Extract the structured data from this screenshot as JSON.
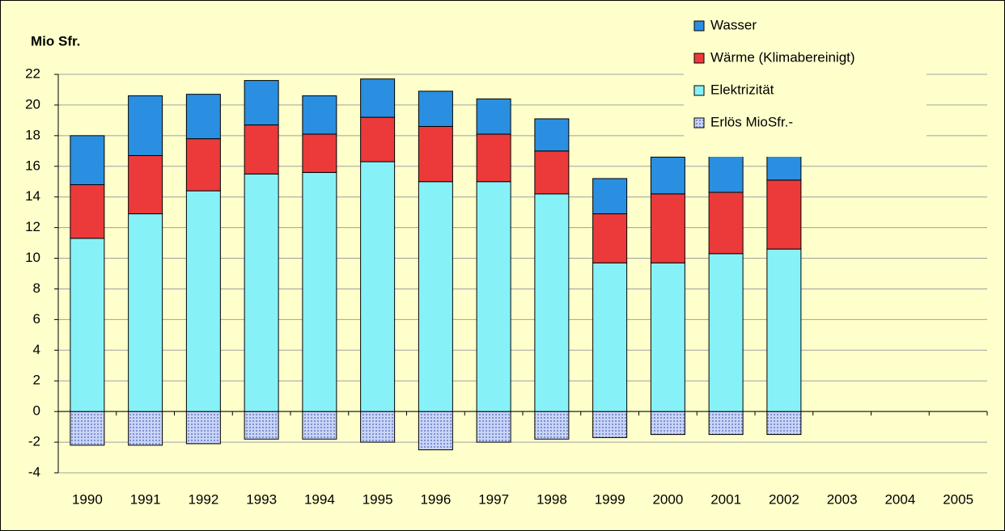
{
  "chart_data": {
    "type": "bar",
    "stacked": true,
    "y_axis_title": "Mio Sfr.",
    "categories": [
      "1990",
      "1991",
      "1992",
      "1993",
      "1994",
      "1995",
      "1996",
      "1997",
      "1998",
      "1999",
      "2000",
      "2001",
      "2002",
      "2003",
      "2004",
      "2005"
    ],
    "series": [
      {
        "name": "Wasser",
        "color": "#2a8fe0",
        "values": [
          3.2,
          3.9,
          2.9,
          2.9,
          2.5,
          2.5,
          2.3,
          2.3,
          2.1,
          2.3,
          2.4,
          2.5,
          2.3,
          null,
          null,
          null
        ]
      },
      {
        "name": "Wärme (Klimabereinigt)",
        "color": "#ec3a3a",
        "values": [
          3.5,
          3.8,
          3.4,
          3.2,
          2.5,
          2.9,
          3.6,
          3.1,
          2.8,
          3.2,
          4.5,
          4.0,
          4.5,
          null,
          null,
          null
        ]
      },
      {
        "name": "Elektrizität",
        "color": "#86f2f8",
        "values": [
          11.3,
          12.9,
          14.4,
          15.5,
          15.6,
          16.3,
          15.0,
          15.0,
          14.2,
          9.7,
          9.7,
          10.3,
          10.6,
          null,
          null,
          null
        ]
      },
      {
        "name": "Erlös MioSfr.-",
        "color": "#b4c4f0",
        "values": [
          -2.2,
          -2.2,
          -2.1,
          -1.8,
          -1.8,
          -2.0,
          -2.5,
          -2.0,
          -1.8,
          -1.7,
          -1.5,
          -1.5,
          -1.5,
          null,
          null,
          null
        ]
      }
    ],
    "ylim": [
      -4,
      22
    ],
    "yticks": [
      -4,
      -2,
      0,
      2,
      4,
      6,
      8,
      10,
      12,
      14,
      16,
      18,
      20,
      22
    ],
    "grid": true
  }
}
